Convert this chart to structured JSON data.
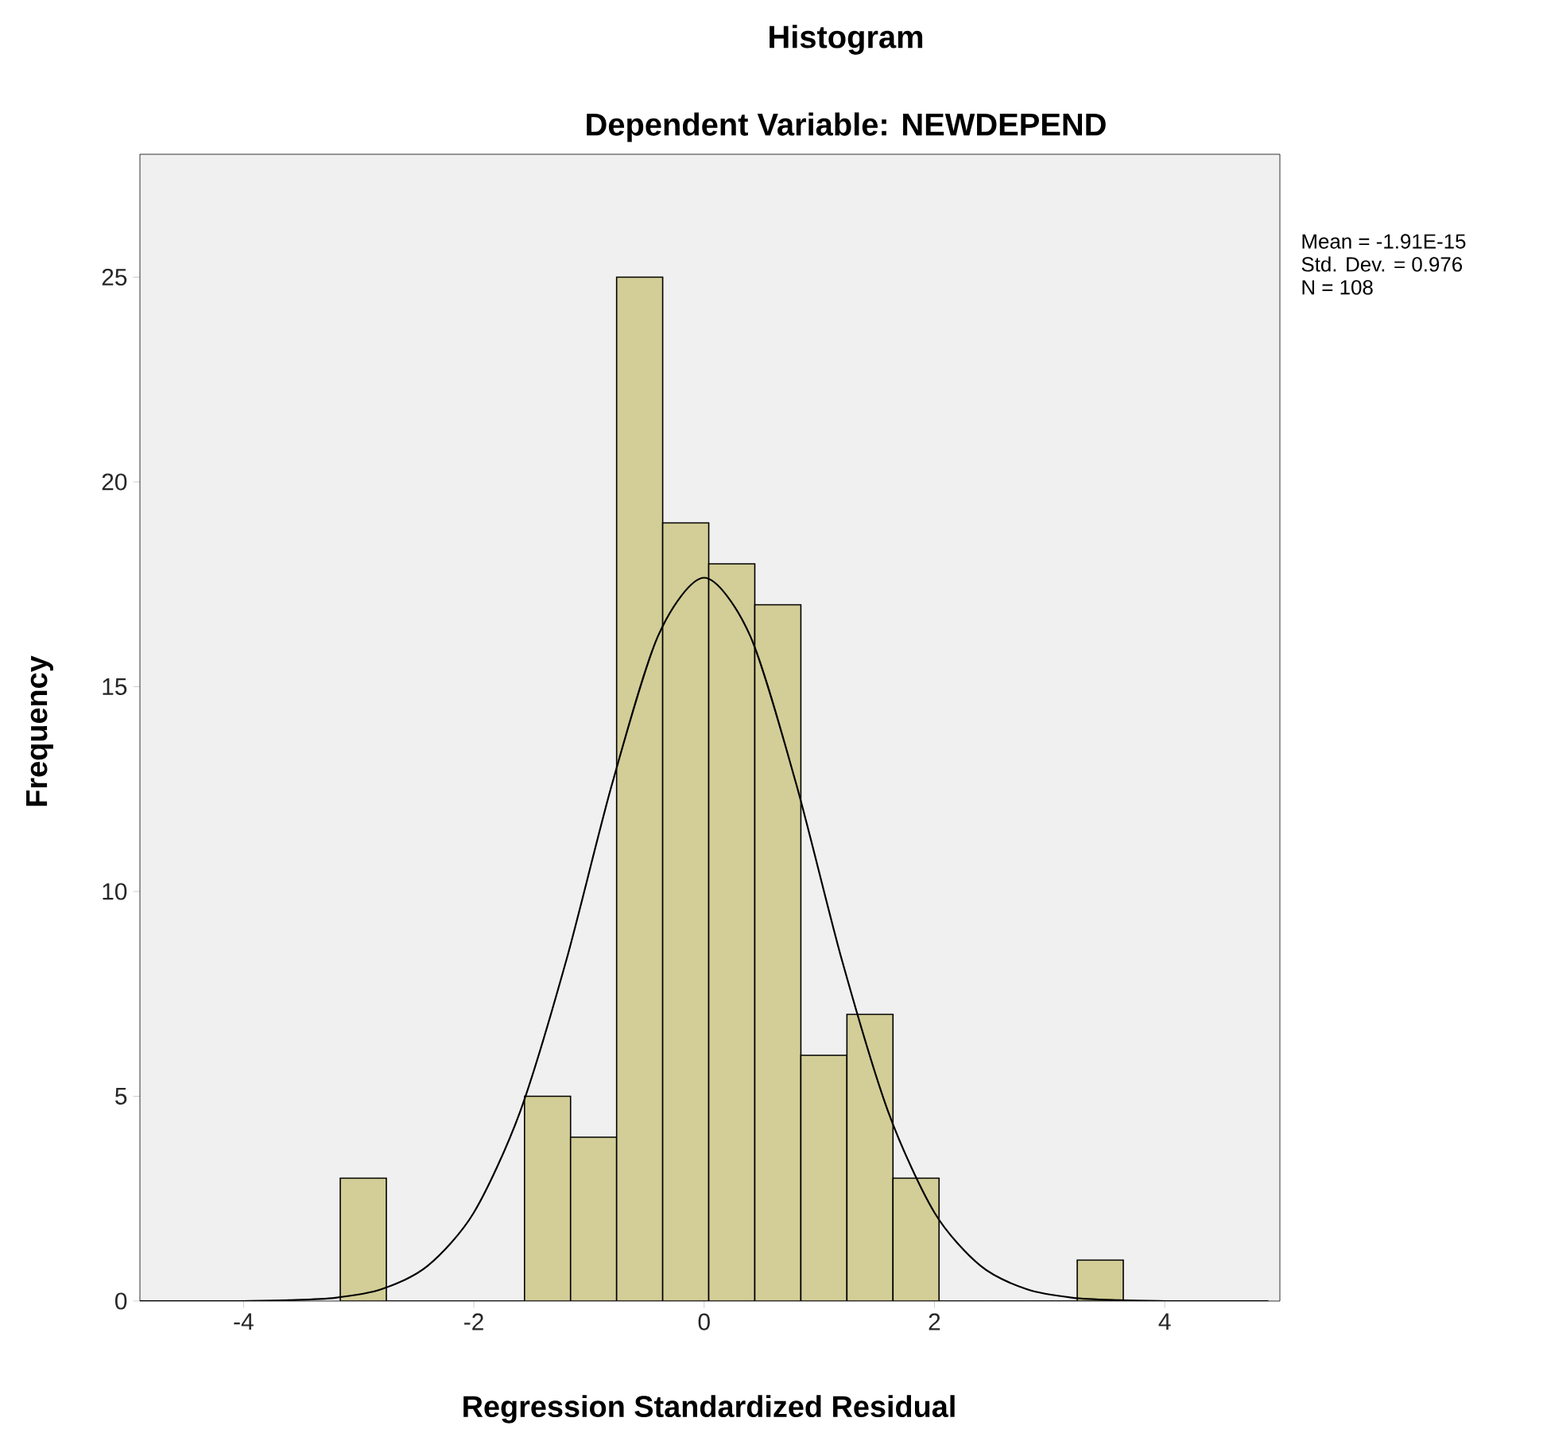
{
  "chart_data": {
    "type": "histogram",
    "title": "Histogram",
    "subtitle": "Dependent Variable: NEWDEPEND",
    "xlabel": "Regression Standardized Residual",
    "ylabel": "Frequency",
    "bins": [
      -3.16,
      -2.76,
      -2.36,
      -1.96,
      -1.56,
      -1.16,
      -0.76,
      -0.36,
      0.04,
      0.44,
      0.84,
      1.24,
      1.64,
      2.04,
      2.44,
      2.84,
      3.24,
      3.64
    ],
    "values": [
      3,
      0,
      0,
      0,
      5,
      4,
      25,
      19,
      18,
      17,
      6,
      7,
      3,
      0,
      0,
      0,
      1
    ],
    "color": "#d3ce97",
    "series": [
      {
        "type": "line",
        "color": "#000000",
        "x": [
          -4.9,
          -4.4,
          -4.0,
          -3.6,
          -3.2,
          -2.8,
          -2.4,
          -2.0,
          -1.6,
          -1.2,
          -0.8,
          -0.4,
          0.0,
          0.4,
          0.8,
          1.2,
          1.6,
          2.0,
          2.4,
          2.8,
          3.2,
          3.6,
          4.0,
          4.4,
          4.9
        ],
        "values": [
          0.0,
          0.0,
          0.0,
          0.02,
          0.08,
          0.29,
          0.86,
          2.16,
          4.61,
          8.29,
          12.62,
          16.24,
          17.66,
          16.24,
          12.62,
          8.29,
          4.61,
          2.16,
          0.86,
          0.29,
          0.08,
          0.02,
          0.0,
          0.0,
          0.0
        ]
      }
    ],
    "xlim": [
      -4.9,
      5.0
    ],
    "ylim": [
      0,
      28
    ],
    "xticks": [
      -4,
      -2,
      0,
      2,
      4
    ],
    "yticks": [
      0,
      5,
      10,
      15,
      20,
      25
    ],
    "annotations": [
      "Mean = -1.91E-15",
      "Std. Dev. = 0.976",
      "N = 108"
    ]
  }
}
